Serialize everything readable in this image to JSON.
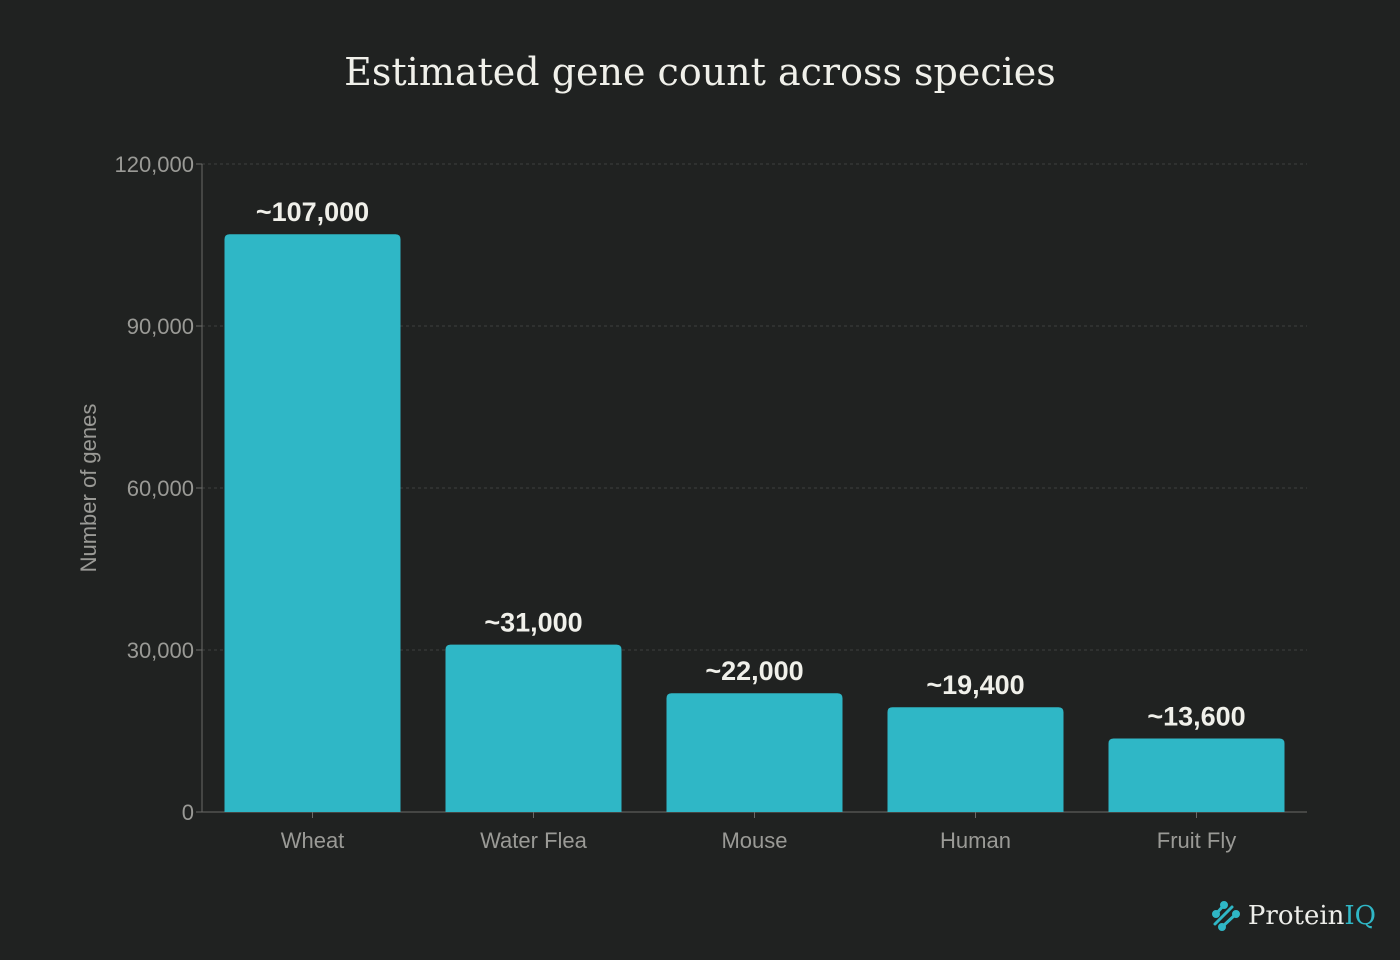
{
  "chart_data": {
    "type": "bar",
    "title": "Estimated gene count across species",
    "xlabel": "",
    "ylabel": "Number of genes",
    "categories": [
      "Wheat",
      "Water Flea",
      "Mouse",
      "Human",
      "Fruit Fly"
    ],
    "values": [
      107000,
      31000,
      22000,
      19400,
      13600
    ],
    "data_labels": [
      "~107,000",
      "~31,000",
      "~22,000",
      "~19,400",
      "~13,600"
    ],
    "ylim": [
      0,
      120000
    ],
    "yticks": [
      0,
      30000,
      60000,
      90000,
      120000
    ],
    "ytick_labels": [
      "0",
      "30,000",
      "60,000",
      "90,000",
      "120,000"
    ],
    "grid": "horizontal dashed",
    "colors": {
      "bar": "#2fb7c6",
      "background": "#202221",
      "text": "#f0f0ea",
      "axis_text": "#9a9a96"
    }
  },
  "branding": {
    "logo_text_main": "Protein",
    "logo_text_accent": "IQ"
  }
}
